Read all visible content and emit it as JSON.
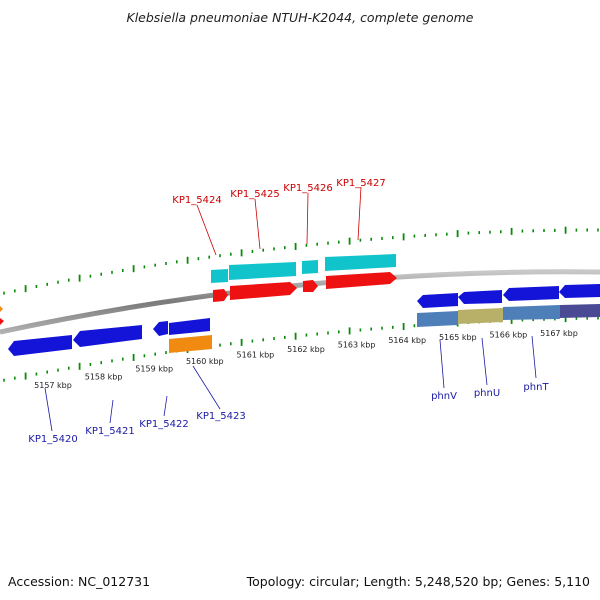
{
  "title": "Klebsiella pneumoniae NTUH-K2044, complete genome",
  "footer": {
    "accession": "Accession: NC_012731",
    "summary": "Topology: circular; Length: 5,248,520 bp; Genes: 5,110"
  },
  "scale": {
    "ticks": [
      {
        "kbp": 5157,
        "label": "5157 kbp"
      },
      {
        "kbp": 5158,
        "label": "5158 kbp"
      },
      {
        "kbp": 5159,
        "label": "5159 kbp"
      },
      {
        "kbp": 5160,
        "label": "5160 kbp"
      },
      {
        "kbp": 5161,
        "label": "5161 kbp"
      },
      {
        "kbp": 5162,
        "label": "5162 kbp"
      },
      {
        "kbp": 5163,
        "label": "5163 kbp"
      },
      {
        "kbp": 5164,
        "label": "5164 kbp"
      },
      {
        "kbp": 5165,
        "label": "5165 kbp"
      },
      {
        "kbp": 5166,
        "label": "5166 kbp"
      },
      {
        "kbp": 5167,
        "label": "5167 kbp"
      }
    ]
  },
  "genes_forward": [
    {
      "name": "KP1_5424"
    },
    {
      "name": "KP1_5425"
    },
    {
      "name": "KP1_5426"
    },
    {
      "name": "KP1_5427"
    }
  ],
  "genes_reverse": [
    {
      "name": "KP1_5420"
    },
    {
      "name": "KP1_5421"
    },
    {
      "name": "KP1_5422"
    },
    {
      "name": "KP1_5423"
    },
    {
      "name": "phnV"
    },
    {
      "name": "phnU"
    },
    {
      "name": "phnT"
    }
  ],
  "colors": {
    "forward_label": "#cc0000",
    "reverse_label": "#1a1aa6",
    "cds_red": "#ee1111",
    "cds_blue": "#1414d8",
    "gene_cyan": "#11c4cc",
    "cds_orange": "#f08a10",
    "gene_steel": "#4f7fb8",
    "gene_khaki": "#b8b068",
    "gene_navy": "#4a4a94",
    "backbone": "#8a8a8a",
    "tick_green": "#0a8a0a"
  }
}
